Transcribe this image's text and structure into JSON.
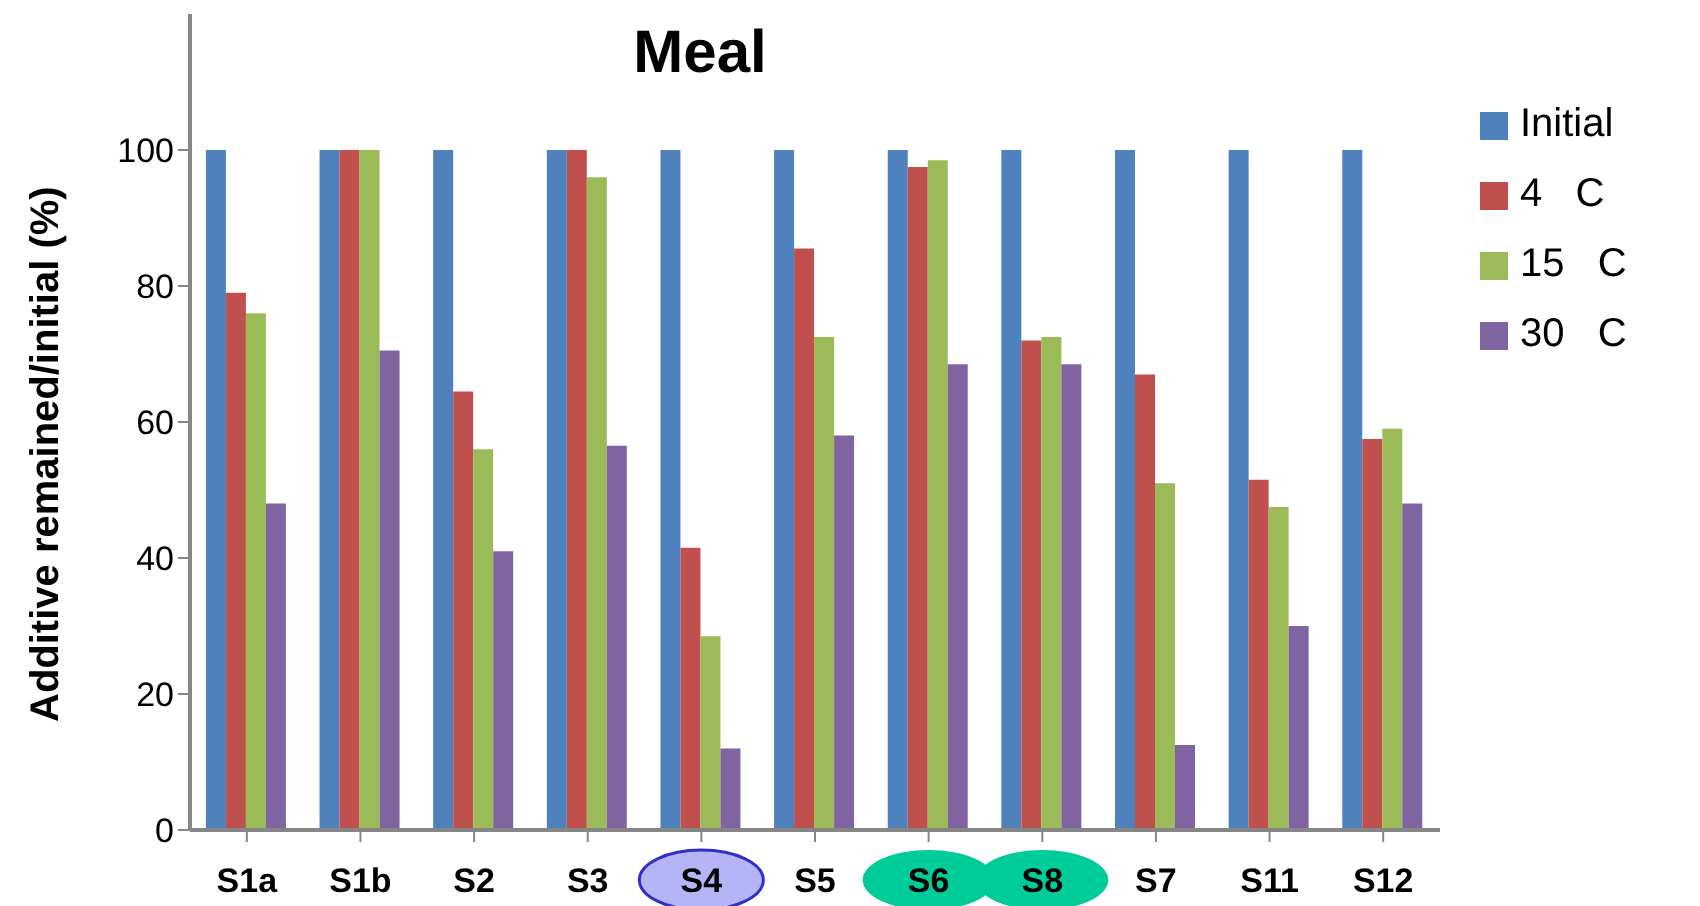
{
  "chart_data": {
    "type": "bar",
    "title": "Meal",
    "ylabel": "Additive remained/initial (%)",
    "categories": [
      "S1a",
      "S1b",
      "S2",
      "S3",
      "S4",
      "S5",
      "S6",
      "S8",
      "S7",
      "S11",
      "S12"
    ],
    "series": [
      {
        "name": "Initial",
        "color": "#4f81bd",
        "values": [
          100,
          100,
          100,
          100,
          100,
          100,
          100,
          100,
          100,
          100,
          100
        ]
      },
      {
        "name": "4   C",
        "color": "#c0504d",
        "values": [
          79,
          100,
          64.5,
          100,
          41.5,
          85.5,
          97.5,
          72,
          67,
          51.5,
          57.5
        ]
      },
      {
        "name": "15   C",
        "color": "#9bbb59",
        "values": [
          76,
          100,
          56,
          96,
          28.5,
          72.5,
          98.5,
          72.5,
          51,
          47.5,
          59
        ]
      },
      {
        "name": "30   C",
        "color": "#8064a2",
        "values": [
          48,
          70.5,
          41,
          56.5,
          12,
          58,
          68.5,
          68.5,
          12.5,
          30,
          48
        ]
      }
    ],
    "ylim": [
      0,
      120
    ],
    "yticks": [
      0,
      20,
      40,
      60,
      80,
      100
    ],
    "legend": "right"
  }
}
